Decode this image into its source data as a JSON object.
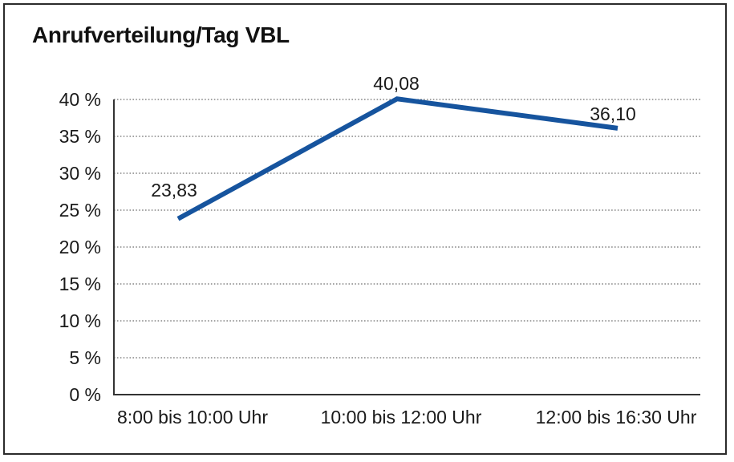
{
  "chart_data": {
    "type": "line",
    "title": "Anrufverteilung/Tag VBL",
    "categories": [
      "8:00 bis 10:00 Uhr",
      "10:00 bis 12:00 Uhr",
      "12:00 bis 16:30 Uhr"
    ],
    "series": [
      {
        "values": [
          23.83,
          40.08,
          36.1
        ],
        "value_labels": [
          "23,83",
          "40,08",
          "36,10"
        ],
        "color": "#16549E"
      }
    ],
    "xlabel": "",
    "ylabel": "",
    "ylim": [
      0,
      40
    ],
    "y_tick_step": 5,
    "y_tick_labels": [
      "0 %",
      "5 %",
      "10 %",
      "15 %",
      "20 %",
      "25 %",
      "30 %",
      "35 %",
      "40 %"
    ],
    "grid": "horizontal-dotted",
    "legend": "none"
  },
  "colors": {
    "line": "#16549E",
    "grid": "#4a4a4a",
    "axis": "#333333",
    "text": "#1a1a1a",
    "frame_border": "#2b2b2b",
    "background": "#ffffff"
  }
}
